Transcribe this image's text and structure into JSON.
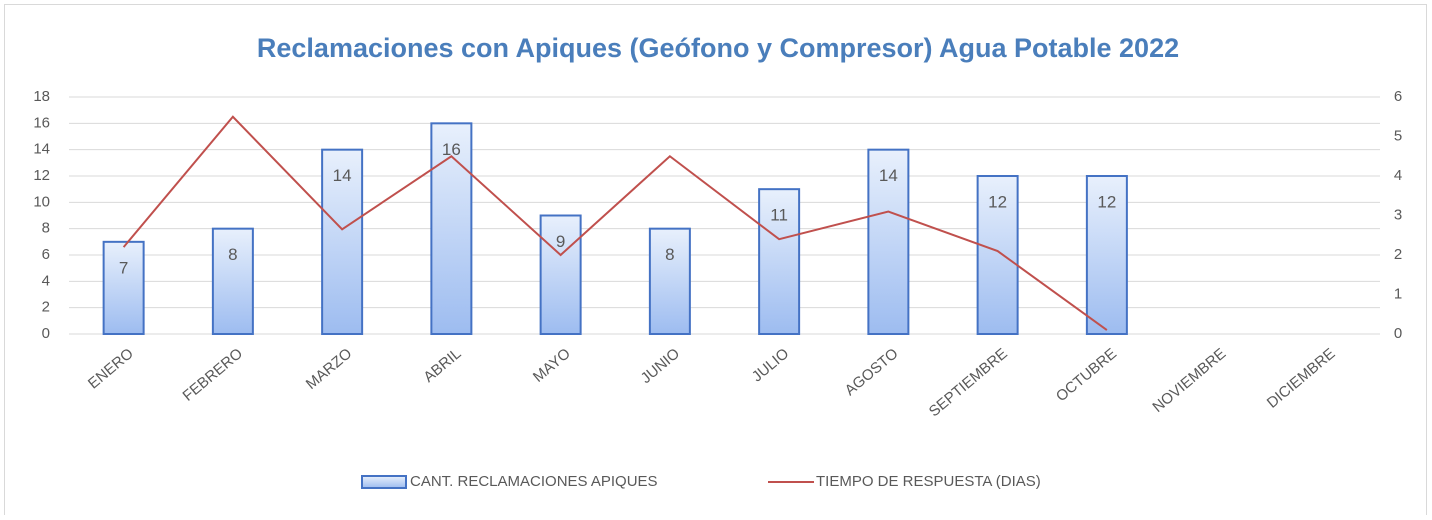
{
  "chart_data": {
    "type": "bar",
    "title": "Reclamaciones  con Apiques (Geófono y Compresor) Agua Potable 2022",
    "categories": [
      "ENERO",
      "FEBRERO",
      "MARZO",
      "ABRIL",
      "MAYO",
      "JUNIO",
      "JULIO",
      "AGOSTO",
      "SEPTIEMBRE",
      "OCTUBRE",
      "NOVIEMBRE",
      "DICIEMBRE"
    ],
    "series": [
      {
        "name": "CANT. RECLAMACIONES APIQUES",
        "type": "bar",
        "color": "#4472c4",
        "values": [
          7,
          8,
          14,
          16,
          9,
          8,
          11,
          14,
          12,
          12,
          null,
          null
        ]
      },
      {
        "name": "TIEMPO DE RESPUESTA (DIAS)",
        "type": "line",
        "axis": "y2",
        "color": "#c0504d",
        "values": [
          2.2,
          5.5,
          2.65,
          4.5,
          2.0,
          4.5,
          2.4,
          3.1,
          2.1,
          0.1,
          null,
          null
        ]
      }
    ],
    "ylim": [
      0,
      18
    ],
    "yticks": [
      0,
      2,
      4,
      6,
      8,
      10,
      12,
      14,
      16,
      18
    ],
    "y2lim": [
      0,
      6
    ],
    "y2ticks": [
      0,
      1,
      2,
      3,
      4,
      5,
      6
    ],
    "grid": true,
    "legend": "bottom"
  }
}
